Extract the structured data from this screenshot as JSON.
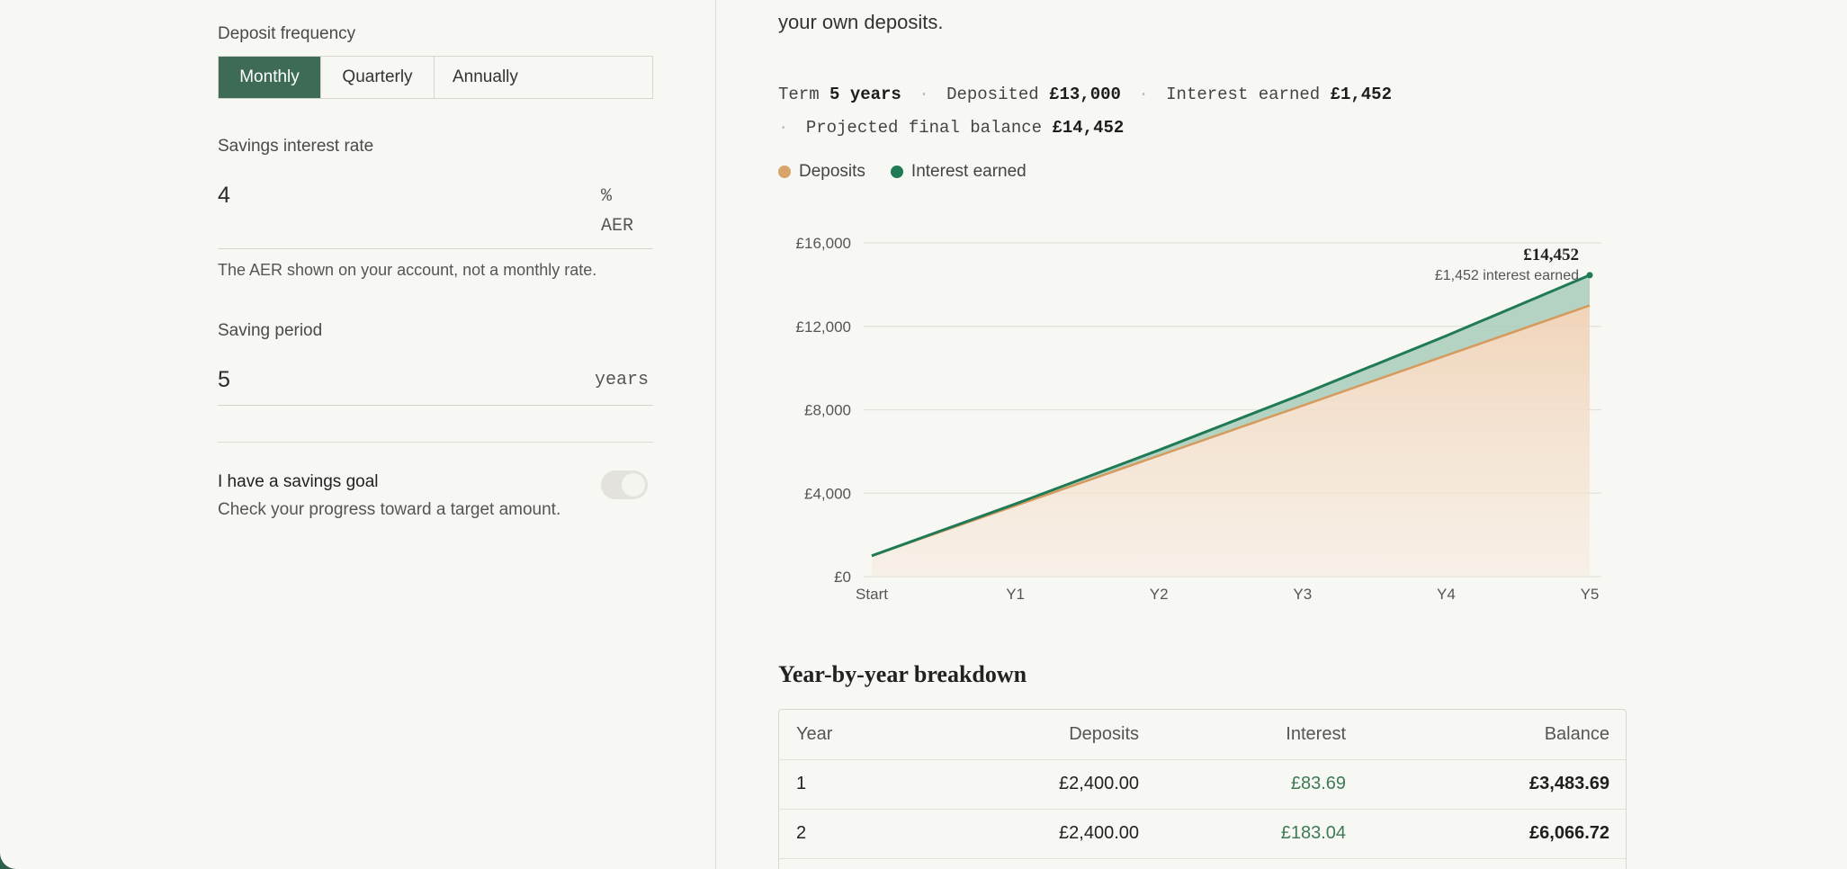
{
  "left": {
    "frequency": {
      "label": "Deposit frequency",
      "options": [
        "Monthly",
        "Quarterly",
        "Annually"
      ],
      "selected": "Monthly"
    },
    "rate": {
      "label": "Savings interest rate",
      "value": "4",
      "unit_top": "%",
      "unit_bottom": "AER",
      "help": "The AER shown on your account, not a monthly rate."
    },
    "period": {
      "label": "Saving period",
      "value": "5",
      "unit": "years"
    },
    "goal": {
      "title": "I have a savings goal",
      "subtitle": "Check your progress toward a target amount.",
      "enabled": false
    }
  },
  "right": {
    "intro_line": "your own deposits.",
    "summary": {
      "term_label": "Term",
      "term_value": "5 years",
      "deposited_label": "Deposited",
      "deposited_value": "£13,000",
      "interest_label": "Interest earned",
      "interest_value": "£1,452",
      "final_label": "Projected final balance",
      "final_value": "£14,452",
      "separator": "·"
    },
    "legend": [
      {
        "label": "Deposits",
        "color": "#d9a46a"
      },
      {
        "label": "Interest earned",
        "color": "#1f7a55"
      }
    ],
    "chart_annotation": {
      "value": "£14,452",
      "note": "£1,452 interest earned"
    },
    "breakdown_title": "Year-by-year breakdown",
    "table": {
      "headers": [
        "Year",
        "Deposits",
        "Interest",
        "Balance"
      ],
      "rows": [
        {
          "year": "1",
          "deposits": "£2,400.00",
          "interest": "£83.69",
          "balance": "£3,483.69"
        },
        {
          "year": "2",
          "deposits": "£2,400.00",
          "interest": "£183.04",
          "balance": "£6,066.72"
        }
      ]
    }
  },
  "chart_data": {
    "type": "area",
    "x": [
      "Start",
      "Y1",
      "Y2",
      "Y3",
      "Y4",
      "Y5"
    ],
    "ylim": [
      0,
      16000
    ],
    "y_ticks": [
      "£0",
      "£4,000",
      "£8,000",
      "£12,000",
      "£16,000"
    ],
    "y_tick_values": [
      0,
      4000,
      8000,
      12000,
      16000
    ],
    "grid": true,
    "series": [
      {
        "name": "Deposits",
        "values": [
          1000,
          3400,
          5800,
          8200,
          10600,
          13000
        ],
        "color": "#d9a46a"
      },
      {
        "name": "Interest earned",
        "values": [
          1000,
          3484,
          6067,
          8750,
          11540,
          14452
        ],
        "color": "#1f7a55"
      }
    ]
  }
}
